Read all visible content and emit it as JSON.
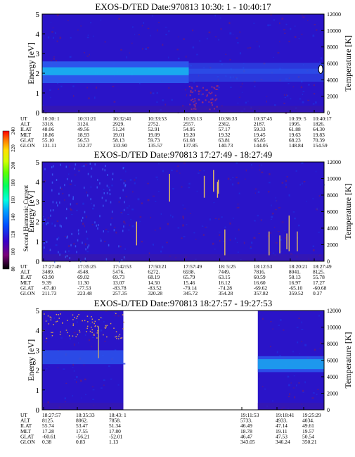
{
  "colors": {
    "background": "#2a14c8",
    "band_mid": "#2c5cf0",
    "band_high": "#18b8f0",
    "noise_dark": "#6a1a7a",
    "spike": "#e8c060",
    "colorbar": [
      "#000000",
      "#7a007a",
      "#3a00c8",
      "#0050ff",
      "#00a0ff",
      "#00ffe0",
      "#00ff60",
      "#60ff00",
      "#d0ff00",
      "#ffe000",
      "#ff8000",
      "#ff0000"
    ]
  },
  "colorbar": {
    "label": "Second Harmonic Current",
    "ticks": [
      "80",
      "100",
      "120",
      "140",
      "160",
      "180",
      "200",
      "220",
      "240"
    ]
  },
  "chart_data": [
    {
      "type": "heatmap",
      "title": "EXOS-D/TED   Date:970813  10:30: 1 - 10:40:17",
      "ylabel": "Energy [eV]",
      "y2label": "Temperature [K]",
      "ylim": [
        0,
        5
      ],
      "y2lim": [
        0,
        12000
      ],
      "yticks": [
        "0",
        "1",
        "2",
        "3",
        "4",
        "5"
      ],
      "y2ticks": [
        "0",
        "2000",
        "4000",
        "6000",
        "8000",
        "10000",
        "12000"
      ],
      "bands": [
        {
          "from": 1.5,
          "to": 2.6,
          "level": "mid"
        },
        {
          "from": 1.9,
          "to": 2.3,
          "level": "high"
        }
      ],
      "table": {
        "row_labels": [
          "UT",
          "ALT",
          "ILAT",
          "MLT",
          "GLAT",
          "GLON"
        ],
        "columns": [
          [
            "10:30: 1",
            "3318.",
            "48.06",
            "18.86",
            "55.10",
            "131.11"
          ],
          [
            "10:31:21",
            "3124.",
            "49.56",
            "18.93",
            "56.53",
            "132.37"
          ],
          [
            "10:32:41",
            "2929.",
            "51.24",
            "19.01",
            "58.13",
            "133.90"
          ],
          [
            "10:33:53",
            "2752.",
            "52.91",
            "19.09",
            "59.73",
            "135.57"
          ],
          [
            "10:35:13",
            "2557.",
            "54.95",
            "19.20",
            "61.68",
            "137.85"
          ],
          [
            "10:36:33",
            "2362.",
            "57.17",
            "19.32",
            "63.81",
            "140.73"
          ],
          [
            "10:37:45",
            "2187.",
            "59.33",
            "19.45",
            "65.85",
            "144.05"
          ],
          [
            "10:39: 5",
            "1995.",
            "61.88",
            "19.63",
            "68.23",
            "148.84"
          ],
          [
            "10:40:17",
            "1826.",
            "64.30",
            "19.83",
            "70.39",
            "154.59"
          ]
        ]
      }
    },
    {
      "type": "heatmap",
      "title": "EXOS-D/TED   Date:970813  17:27:49 - 18:27:49",
      "ylabel": "Energy [eV]",
      "y2label": "Temperature [K]",
      "ylim": [
        0,
        5
      ],
      "y2lim": [
        0,
        12000
      ],
      "yticks": [
        "0",
        "1",
        "2",
        "3",
        "4",
        "5"
      ],
      "y2ticks": [
        "0",
        "2000",
        "4000",
        "6000",
        "8000",
        "10000",
        "12000"
      ],
      "spikes": [
        {
          "x": 0.452,
          "from": 3.0,
          "to": 4.4
        },
        {
          "x": 0.335,
          "from": 0.8,
          "to": 2.0
        },
        {
          "x": 0.575,
          "from": 3.2,
          "to": 4.3
        },
        {
          "x": 0.608,
          "from": 3.5,
          "to": 4.6
        },
        {
          "x": 0.622,
          "from": 3.2,
          "to": 4.0
        },
        {
          "x": 0.625,
          "from": 3.4,
          "to": 4.1
        },
        {
          "x": 0.648,
          "from": 0.3,
          "to": 1.6
        },
        {
          "x": 0.805,
          "from": 0.3,
          "to": 1.5
        },
        {
          "x": 0.843,
          "from": 0.4,
          "to": 1.3
        },
        {
          "x": 0.876,
          "from": 0.5,
          "to": 2.3
        },
        {
          "x": 0.868,
          "from": 0.6,
          "to": 1.4
        },
        {
          "x": 0.905,
          "from": 0.5,
          "to": 1.5
        }
      ],
      "table": {
        "row_labels": [
          "UT",
          "ALT",
          "ILAT",
          "MLT",
          "GLAT",
          "GLON"
        ],
        "columns": [
          [
            "17:27:49",
            "3489.",
            "63.90",
            "9.39",
            "-67.40",
            "211.73"
          ],
          [
            "17:35:25",
            "4548.",
            "69.02",
            "11.30",
            "-77.53",
            "223.48"
          ],
          [
            "17:42:53",
            "5476.",
            "69.73",
            "13.07",
            "-83.78",
            "257.35"
          ],
          [
            "17:50:21",
            "6272.",
            "68.19",
            "14.50",
            "-83.52",
            "320.28"
          ],
          [
            "17:57:49",
            "6938.",
            "65.79",
            "15.46",
            "-79.14",
            "345.72"
          ],
          [
            "18: 5:25",
            "7449.",
            "63.15",
            "16.12",
            "-74.28",
            "354.28"
          ],
          [
            "18:12:53",
            "7816.",
            "60.59",
            "16.60",
            "-69.62",
            "357.82"
          ],
          [
            "18:20:21",
            "8041.",
            "58.13",
            "16.97",
            "-65.10",
            "359.52"
          ],
          [
            "18:27:49",
            "8125.",
            "55.78",
            "17.27",
            "-60.68",
            "0.37"
          ]
        ]
      }
    },
    {
      "type": "heatmap",
      "title": "EXOS-D/TED   Date:970813  18:27:57 - 19:27:53",
      "ylabel": "Energy [eV]",
      "y2label": "Temperature [K]",
      "ylim": [
        0,
        5
      ],
      "y2lim": [
        0,
        12000
      ],
      "yticks": [
        "0",
        "1",
        "2",
        "3",
        "4",
        "5"
      ],
      "y2ticks": [
        "0",
        "2000",
        "4000",
        "6000",
        "8000",
        "10000",
        "12000"
      ],
      "segments": [
        {
          "from": 0.0,
          "to": 0.288
        },
        {
          "from": 0.765,
          "to": 1.0
        }
      ],
      "table": {
        "row_labels": [
          "UT",
          "ALT",
          "ILAT",
          "MLT",
          "GLAT",
          "GLON"
        ],
        "columns": [
          [
            "18:27:57",
            "8125.",
            "55.74",
            "17.28",
            "-60.61",
            "0.38"
          ],
          [
            "18:35:33",
            "8062.",
            "53.47",
            "17.55",
            "-56.21",
            "0.83"
          ],
          [
            "18:43: 1",
            "7858.",
            "51.34",
            "17.80",
            "-52.01",
            "1.13"
          ],
          [
            "19:11:53",
            "5733.",
            "46.49",
            "18.78",
            "46.47",
            "343.05"
          ],
          [
            "19:18:41",
            "4933.",
            "47.14",
            "19.11",
            "47.53",
            "346.24"
          ],
          [
            "19:25:29",
            "4034.",
            "49.61",
            "19.57",
            "50.54",
            "350.21"
          ]
        ]
      }
    }
  ]
}
